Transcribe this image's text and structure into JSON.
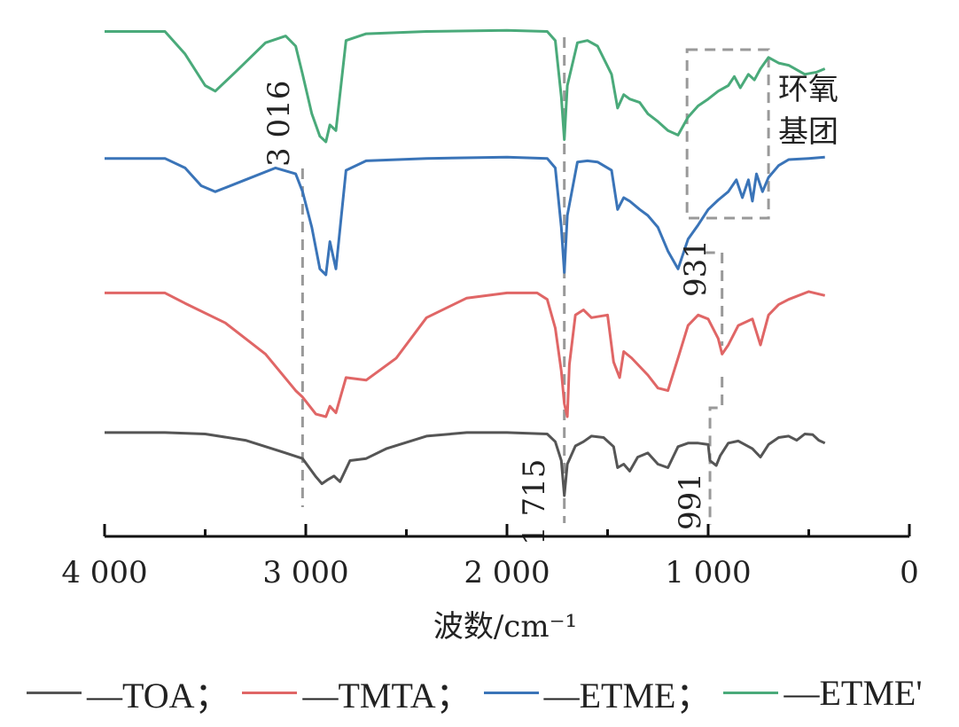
{
  "chart_data": {
    "type": "line",
    "title": "",
    "xlabel": "波数/cm⁻¹",
    "ylabel": "",
    "xlim": [
      4000,
      0
    ],
    "x_reversed": true,
    "grid": false,
    "x_ticks": [
      {
        "value": 4000,
        "label": "4 000"
      },
      {
        "value": 3000,
        "label": "3 000"
      },
      {
        "value": 2000,
        "label": "2 000"
      },
      {
        "value": 1000,
        "label": "1 000"
      },
      {
        "value": 0,
        "label": "0"
      }
    ],
    "legend_position": "bottom",
    "series": [
      {
        "name": "—TOA；",
        "color": "#555555",
        "points": [
          [
            4000,
            0.95
          ],
          [
            3700,
            0.95
          ],
          [
            3500,
            0.93
          ],
          [
            3300,
            0.84
          ],
          [
            3100,
            0.66
          ],
          [
            3016,
            0.58
          ],
          [
            2950,
            0.32
          ],
          [
            2920,
            0.22
          ],
          [
            2890,
            0.28
          ],
          [
            2860,
            0.33
          ],
          [
            2830,
            0.25
          ],
          [
            2780,
            0.55
          ],
          [
            2700,
            0.58
          ],
          [
            2600,
            0.72
          ],
          [
            2400,
            0.9
          ],
          [
            2200,
            0.95
          ],
          [
            2000,
            0.95
          ],
          [
            1800,
            0.93
          ],
          [
            1760,
            0.82
          ],
          [
            1730,
            0.55
          ],
          [
            1715,
            0.05
          ],
          [
            1700,
            0.5
          ],
          [
            1660,
            0.76
          ],
          [
            1620,
            0.82
          ],
          [
            1580,
            0.9
          ],
          [
            1520,
            0.88
          ],
          [
            1470,
            0.75
          ],
          [
            1450,
            0.45
          ],
          [
            1420,
            0.5
          ],
          [
            1390,
            0.4
          ],
          [
            1350,
            0.6
          ],
          [
            1300,
            0.66
          ],
          [
            1250,
            0.5
          ],
          [
            1200,
            0.45
          ],
          [
            1150,
            0.75
          ],
          [
            1100,
            0.8
          ],
          [
            1050,
            0.8
          ],
          [
            1000,
            0.78
          ],
          [
            991,
            0.55
          ],
          [
            960,
            0.48
          ],
          [
            940,
            0.62
          ],
          [
            900,
            0.8
          ],
          [
            850,
            0.83
          ],
          [
            780,
            0.72
          ],
          [
            740,
            0.6
          ],
          [
            700,
            0.78
          ],
          [
            650,
            0.88
          ],
          [
            600,
            0.9
          ],
          [
            560,
            0.84
          ],
          [
            520,
            0.93
          ],
          [
            480,
            0.92
          ],
          [
            450,
            0.84
          ],
          [
            420,
            0.8
          ]
        ]
      },
      {
        "name": "—TMTA；",
        "color": "#e06666",
        "points": [
          [
            4000,
            0.95
          ],
          [
            3700,
            0.95
          ],
          [
            3600,
            0.87
          ],
          [
            3400,
            0.72
          ],
          [
            3200,
            0.48
          ],
          [
            3050,
            0.2
          ],
          [
            3016,
            0.15
          ],
          [
            2950,
            0.02
          ],
          [
            2900,
            0.0
          ],
          [
            2880,
            0.08
          ],
          [
            2850,
            0.03
          ],
          [
            2800,
            0.3
          ],
          [
            2700,
            0.28
          ],
          [
            2550,
            0.45
          ],
          [
            2400,
            0.76
          ],
          [
            2200,
            0.91
          ],
          [
            2000,
            0.95
          ],
          [
            1850,
            0.95
          ],
          [
            1800,
            0.9
          ],
          [
            1760,
            0.68
          ],
          [
            1730,
            0.35
          ],
          [
            1715,
            0.1
          ],
          [
            1700,
            0.0
          ],
          [
            1690,
            0.4
          ],
          [
            1660,
            0.78
          ],
          [
            1620,
            0.82
          ],
          [
            1580,
            0.76
          ],
          [
            1500,
            0.78
          ],
          [
            1470,
            0.42
          ],
          [
            1440,
            0.3
          ],
          [
            1420,
            0.5
          ],
          [
            1380,
            0.45
          ],
          [
            1300,
            0.32
          ],
          [
            1250,
            0.22
          ],
          [
            1200,
            0.2
          ],
          [
            1150,
            0.45
          ],
          [
            1100,
            0.7
          ],
          [
            1050,
            0.78
          ],
          [
            1000,
            0.75
          ],
          [
            950,
            0.6
          ],
          [
            931,
            0.48
          ],
          [
            900,
            0.55
          ],
          [
            850,
            0.7
          ],
          [
            780,
            0.75
          ],
          [
            740,
            0.55
          ],
          [
            700,
            0.78
          ],
          [
            650,
            0.86
          ],
          [
            600,
            0.9
          ],
          [
            500,
            0.96
          ],
          [
            420,
            0.93
          ]
        ]
      },
      {
        "name": "—ETME；",
        "color": "#3a74b8",
        "points": [
          [
            4000,
            0.98
          ],
          [
            3700,
            0.98
          ],
          [
            3600,
            0.9
          ],
          [
            3520,
            0.75
          ],
          [
            3450,
            0.7
          ],
          [
            3300,
            0.8
          ],
          [
            3150,
            0.9
          ],
          [
            3050,
            0.85
          ],
          [
            3016,
            0.7
          ],
          [
            2970,
            0.4
          ],
          [
            2930,
            0.05
          ],
          [
            2900,
            0.0
          ],
          [
            2880,
            0.28
          ],
          [
            2850,
            0.05
          ],
          [
            2800,
            0.88
          ],
          [
            2700,
            0.96
          ],
          [
            2400,
            0.98
          ],
          [
            2000,
            0.99
          ],
          [
            1800,
            0.98
          ],
          [
            1760,
            0.9
          ],
          [
            1730,
            0.4
          ],
          [
            1715,
            0.02
          ],
          [
            1700,
            0.5
          ],
          [
            1650,
            0.95
          ],
          [
            1600,
            0.96
          ],
          [
            1550,
            0.95
          ],
          [
            1480,
            0.88
          ],
          [
            1450,
            0.55
          ],
          [
            1420,
            0.65
          ],
          [
            1390,
            0.62
          ],
          [
            1340,
            0.55
          ],
          [
            1300,
            0.5
          ],
          [
            1250,
            0.4
          ],
          [
            1200,
            0.2
          ],
          [
            1150,
            0.05
          ],
          [
            1100,
            0.3
          ],
          [
            1050,
            0.42
          ],
          [
            1000,
            0.55
          ],
          [
            950,
            0.63
          ],
          [
            900,
            0.7
          ],
          [
            860,
            0.8
          ],
          [
            830,
            0.65
          ],
          [
            800,
            0.8
          ],
          [
            780,
            0.62
          ],
          [
            760,
            0.85
          ],
          [
            730,
            0.7
          ],
          [
            700,
            0.82
          ],
          [
            650,
            0.92
          ],
          [
            600,
            0.97
          ],
          [
            500,
            0.98
          ],
          [
            420,
            0.99
          ]
        ]
      },
      {
        "name": "—ETME'",
        "color": "#4aaa7a",
        "points": [
          [
            4000,
            0.98
          ],
          [
            3700,
            0.98
          ],
          [
            3600,
            0.78
          ],
          [
            3500,
            0.5
          ],
          [
            3450,
            0.45
          ],
          [
            3350,
            0.62
          ],
          [
            3200,
            0.88
          ],
          [
            3100,
            0.94
          ],
          [
            3050,
            0.85
          ],
          [
            3016,
            0.6
          ],
          [
            2970,
            0.25
          ],
          [
            2930,
            0.05
          ],
          [
            2900,
            0.0
          ],
          [
            2880,
            0.15
          ],
          [
            2850,
            0.1
          ],
          [
            2800,
            0.9
          ],
          [
            2700,
            0.96
          ],
          [
            2400,
            0.98
          ],
          [
            2000,
            0.99
          ],
          [
            1800,
            0.98
          ],
          [
            1760,
            0.9
          ],
          [
            1730,
            0.4
          ],
          [
            1715,
            0.02
          ],
          [
            1700,
            0.5
          ],
          [
            1650,
            0.88
          ],
          [
            1600,
            0.9
          ],
          [
            1550,
            0.85
          ],
          [
            1480,
            0.6
          ],
          [
            1450,
            0.3
          ],
          [
            1420,
            0.42
          ],
          [
            1390,
            0.38
          ],
          [
            1340,
            0.35
          ],
          [
            1300,
            0.25
          ],
          [
            1250,
            0.18
          ],
          [
            1200,
            0.1
          ],
          [
            1150,
            0.06
          ],
          [
            1100,
            0.22
          ],
          [
            1050,
            0.32
          ],
          [
            1000,
            0.38
          ],
          [
            950,
            0.45
          ],
          [
            900,
            0.5
          ],
          [
            870,
            0.58
          ],
          [
            840,
            0.48
          ],
          [
            800,
            0.6
          ],
          [
            770,
            0.55
          ],
          [
            740,
            0.65
          ],
          [
            700,
            0.75
          ],
          [
            650,
            0.7
          ],
          [
            600,
            0.68
          ],
          [
            520,
            0.6
          ],
          [
            460,
            0.62
          ],
          [
            420,
            0.65
          ]
        ]
      }
    ],
    "annotations": [
      {
        "x": 3016,
        "label": "3 016"
      },
      {
        "x": 1715,
        "label": "1 715"
      },
      {
        "x": 931,
        "label": "931"
      },
      {
        "x": 991,
        "label": "991"
      },
      {
        "label": "环氧",
        "line2": "基团"
      }
    ]
  }
}
